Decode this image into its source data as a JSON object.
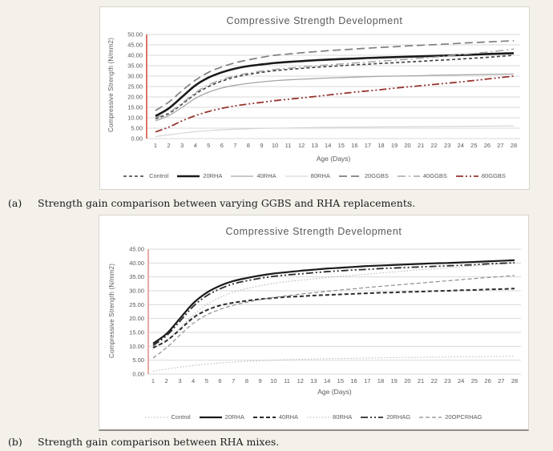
{
  "page": {
    "background": "#f3f1ea"
  },
  "figures": [
    {
      "caption_label": "(a)",
      "caption": "Strength gain comparison between varying GGBS and RHA replacements."
    },
    {
      "caption_label": "(b)",
      "caption": "Strength gain comparison between RHA mixes."
    }
  ],
  "chart_data": [
    {
      "type": "line",
      "title": "Compressive Strength Development",
      "xlabel": "Age (Days)",
      "ylabel": "Compressive Strength (N/mm2)",
      "x": [
        1,
        2,
        3,
        4,
        5,
        6,
        7,
        8,
        9,
        10,
        11,
        12,
        13,
        14,
        15,
        16,
        17,
        18,
        19,
        20,
        21,
        22,
        23,
        24,
        25,
        26,
        27,
        28
      ],
      "ylim": [
        0,
        50
      ],
      "ystep": 5,
      "grid": true,
      "legend_position": "bottom",
      "gridline_color": "#d9d9d9",
      "axis_accent_line": {
        "color": "#d94f43",
        "position": "left"
      },
      "series": [
        {
          "name": "Control",
          "color": "#3f3f3f",
          "weight": 1.6,
          "pattern": "fine-dash",
          "values": [
            9.5,
            12,
            16.5,
            21.3,
            25,
            27.6,
            29.5,
            30.8,
            31.8,
            32.6,
            33.2,
            33.7,
            34.2,
            34.6,
            35,
            35.4,
            35.7,
            36.1,
            36.4,
            36.8,
            37.1,
            37.5,
            37.8,
            38.2,
            38.6,
            39,
            39.5,
            40
          ]
        },
        {
          "name": "20RHA",
          "color": "#1a1a1a",
          "weight": 2.6,
          "pattern": "solid",
          "values": [
            10.8,
            14.5,
            20,
            25.5,
            29.3,
            31.8,
            33.6,
            34.8,
            35.6,
            36.3,
            36.8,
            37.2,
            37.6,
            37.9,
            38.2,
            38.4,
            38.7,
            38.9,
            39.1,
            39.3,
            39.5,
            39.7,
            39.9,
            40.1,
            40.3,
            40.6,
            40.8,
            41
          ]
        },
        {
          "name": "40RHA",
          "color": "#a6a6a6",
          "weight": 1.3,
          "pattern": "solid",
          "values": [
            8.5,
            11,
            15,
            19.3,
            22.3,
            24.3,
            25.6,
            26.5,
            27.2,
            27.8,
            28.2,
            28.5,
            28.8,
            29.1,
            29.3,
            29.5,
            29.7,
            29.9,
            30,
            30.1,
            30.2,
            30.4,
            30.5,
            30.6,
            30.7,
            30.8,
            30.9,
            31
          ]
        },
        {
          "name": "80RHA",
          "color": "#d2d2d2",
          "weight": 1.1,
          "pattern": "solid",
          "values": [
            1,
            1.8,
            2.6,
            3.3,
            3.8,
            4.2,
            4.5,
            4.7,
            4.9,
            5,
            5.1,
            5.2,
            5.3,
            5.4,
            5.45,
            5.5,
            5.55,
            5.6,
            5.65,
            5.7,
            5.75,
            5.8,
            5.85,
            5.9,
            5.95,
            6,
            6.05,
            6.1
          ]
        },
        {
          "name": "20GGBS",
          "color": "#7f7f7f",
          "weight": 1.7,
          "pattern": "long-dash",
          "values": [
            13.5,
            17.5,
            23,
            28,
            31.8,
            34.4,
            36.4,
            37.8,
            39,
            40,
            40.6,
            41.2,
            41.7,
            42.2,
            42.6,
            43,
            43.4,
            43.8,
            44.1,
            44.5,
            44.8,
            45.1,
            45.4,
            45.8,
            46.1,
            46.4,
            46.7,
            47
          ]
        },
        {
          "name": "40GGBS",
          "color": "#a6a6a6",
          "weight": 1.5,
          "pattern": "dash-dot",
          "values": [
            10,
            12.5,
            17,
            22,
            25.8,
            28.3,
            30.1,
            31.4,
            32.4,
            33.2,
            33.8,
            34.4,
            34.9,
            35.4,
            35.8,
            36.3,
            36.7,
            37.2,
            37.6,
            38.1,
            38.6,
            39.1,
            39.7,
            40.3,
            40.9,
            41.5,
            42.2,
            43
          ]
        },
        {
          "name": "80GGBS",
          "color": "#96332e",
          "weight": 1.8,
          "pattern": "dash-dot-dot",
          "values": [
            3.2,
            5.5,
            8.5,
            11,
            13,
            14.5,
            15.7,
            16.6,
            17.4,
            18.2,
            18.9,
            19.5,
            20.2,
            20.9,
            21.6,
            22.3,
            22.9,
            23.5,
            24.2,
            24.8,
            25.4,
            26,
            26.6,
            27.2,
            27.9,
            28.6,
            29.3,
            30
          ]
        }
      ]
    },
    {
      "type": "line",
      "title": "Compressive Strength Development",
      "xlabel": "Age (Days)",
      "ylabel": "Compressive Strength (N/mm2)",
      "x": [
        1,
        2,
        3,
        4,
        5,
        6,
        7,
        8,
        9,
        10,
        11,
        12,
        13,
        14,
        15,
        16,
        17,
        18,
        19,
        20,
        21,
        22,
        23,
        24,
        25,
        26,
        27,
        28
      ],
      "ylim": [
        0,
        45
      ],
      "ystep": 5,
      "grid": true,
      "legend_position": "bottom",
      "gridline_color": "#d9d9d9",
      "axis_accent_line": {
        "color": "#e0968e",
        "position": "left"
      },
      "series": [
        {
          "name": "Control",
          "color": "#b5b5b5",
          "weight": 1.1,
          "pattern": "dotted",
          "values": [
            9.3,
            12,
            16.5,
            21.3,
            25,
            27.6,
            29.5,
            30.8,
            31.8,
            32.7,
            33.3,
            33.8,
            34.3,
            34.8,
            35.2,
            35.6,
            36,
            36.4,
            36.8,
            37.2,
            37.6,
            37.9,
            38.3,
            38.6,
            39,
            39.3,
            39.7,
            40
          ]
        },
        {
          "name": "20RHA",
          "color": "#1a1a1a",
          "weight": 2.2,
          "pattern": "solid",
          "values": [
            11,
            14.5,
            20,
            25.5,
            29.3,
            31.8,
            33.5,
            34.6,
            35.5,
            36.2,
            36.7,
            37.2,
            37.6,
            38,
            38.3,
            38.6,
            38.9,
            39.1,
            39.3,
            39.5,
            39.7,
            39.9,
            40,
            40.2,
            40.4,
            40.6,
            40.8,
            41
          ]
        },
        {
          "name": "40RHA",
          "color": "#2b2b2b",
          "weight": 2.0,
          "pattern": "dashed",
          "values": [
            9.5,
            12,
            16,
            20.3,
            23,
            24.7,
            25.7,
            26.4,
            27,
            27.4,
            27.8,
            28,
            28.3,
            28.5,
            28.7,
            28.9,
            29.1,
            29.3,
            29.4,
            29.6,
            29.7,
            29.9,
            30,
            30.2,
            30.3,
            30.5,
            30.6,
            30.8
          ]
        },
        {
          "name": "80RHA",
          "color": "#b5b5b5",
          "weight": 1.0,
          "pattern": "dotted",
          "values": [
            1,
            1.8,
            2.5,
            3.1,
            3.6,
            4,
            4.3,
            4.6,
            4.8,
            5,
            5.2,
            5.3,
            5.45,
            5.55,
            5.65,
            5.7,
            5.8,
            5.85,
            5.95,
            6,
            6.05,
            6.1,
            6.15,
            6.2,
            6.25,
            6.3,
            6.35,
            6.4
          ]
        },
        {
          "name": "20RHAG",
          "color": "#2b2b2b",
          "weight": 1.8,
          "pattern": "dash-dot-dot",
          "values": [
            10.3,
            13.8,
            19,
            24.4,
            28.2,
            30.7,
            32.5,
            33.6,
            34.5,
            35.2,
            35.7,
            36.1,
            36.5,
            36.9,
            37.2,
            37.5,
            37.7,
            38,
            38.2,
            38.4,
            38.6,
            38.8,
            39,
            39.2,
            39.4,
            39.7,
            39.9,
            40.1
          ]
        },
        {
          "name": "20OPCRHAG",
          "color": "#8c8c8c",
          "weight": 1.2,
          "pattern": "dashed",
          "values": [
            5.8,
            9.5,
            14,
            18.3,
            21.3,
            23.3,
            24.8,
            25.9,
            26.8,
            27.6,
            28.2,
            28.8,
            29.3,
            29.8,
            30.3,
            30.7,
            31.2,
            31.6,
            32,
            32.4,
            32.8,
            33.2,
            33.6,
            34,
            34.4,
            34.8,
            35.1,
            35.5
          ]
        }
      ]
    }
  ]
}
